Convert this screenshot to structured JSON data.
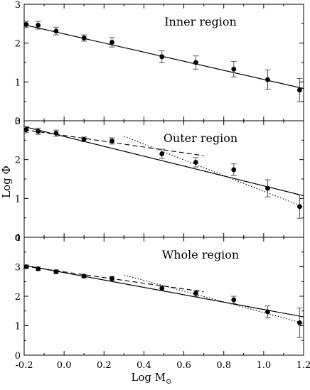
{
  "chart_data": [
    {
      "type": "scatter",
      "title": "Inner region",
      "xlim": [
        -0.2,
        1.2
      ],
      "ylim": [
        0,
        3
      ],
      "x": [
        -0.19,
        -0.13,
        -0.04,
        0.1,
        0.24,
        0.49,
        0.66,
        0.85,
        1.02,
        1.18
      ],
      "y": [
        2.48,
        2.46,
        2.31,
        2.13,
        2.02,
        1.65,
        1.5,
        1.33,
        1.06,
        0.79
      ],
      "yerr": [
        0.08,
        0.1,
        0.1,
        0.08,
        0.12,
        0.15,
        0.17,
        0.2,
        0.25,
        0.3
      ],
      "fits": [
        {
          "style": "solid",
          "x": [
            -0.2,
            1.2
          ],
          "y": [
            2.47,
            0.83
          ]
        }
      ]
    },
    {
      "type": "scatter",
      "title": "Outer region",
      "xlim": [
        -0.2,
        1.2
      ],
      "ylim": [
        0,
        3
      ],
      "x": [
        -0.19,
        -0.13,
        -0.04,
        0.1,
        0.24,
        0.49,
        0.66,
        0.85,
        1.02,
        1.18
      ],
      "y": [
        2.77,
        2.73,
        2.68,
        2.52,
        2.48,
        2.15,
        1.93,
        1.74,
        1.26,
        0.79
      ],
      "yerr": [
        0.08,
        0.08,
        0.08,
        0.06,
        0.08,
        0.12,
        0.12,
        0.15,
        0.22,
        0.3
      ],
      "fits": [
        {
          "style": "solid",
          "x": [
            -0.2,
            1.2
          ],
          "y": [
            2.85,
            1.07
          ]
        },
        {
          "style": "dashed",
          "x": [
            -0.2,
            0.7
          ],
          "y": [
            2.77,
            2.1
          ]
        },
        {
          "style": "dotted",
          "x": [
            0.3,
            1.2
          ],
          "y": [
            2.6,
            0.78
          ]
        }
      ]
    },
    {
      "type": "scatter",
      "title": "Whole region",
      "xlim": [
        -0.2,
        1.2
      ],
      "ylim": [
        0,
        4
      ],
      "x": [
        -0.19,
        -0.13,
        -0.04,
        0.1,
        0.24,
        0.49,
        0.66,
        0.85,
        1.02,
        1.18
      ],
      "y": [
        3.0,
        2.93,
        2.83,
        2.68,
        2.6,
        2.27,
        2.1,
        1.88,
        1.47,
        1.1
      ],
      "yerr": [
        0.06,
        0.06,
        0.06,
        0.05,
        0.07,
        0.08,
        0.1,
        0.12,
        0.2,
        0.5
      ],
      "fits": [
        {
          "style": "solid",
          "x": [
            -0.2,
            1.2
          ],
          "y": [
            3.05,
            1.3
          ]
        },
        {
          "style": "dashed",
          "x": [
            -0.2,
            0.7
          ],
          "y": [
            3.02,
            2.15
          ]
        },
        {
          "style": "dotted",
          "x": [
            0.3,
            1.2
          ],
          "y": [
            2.72,
            1.08
          ]
        }
      ]
    }
  ],
  "axes": {
    "ylabel": "Log Φ",
    "xlabel": "Log M",
    "xlabel_sub": "⊙",
    "xticks": [
      "-0.2",
      "0.0",
      "0.2",
      "0.4",
      "0.6",
      "0.8",
      "1.0",
      "1.2"
    ],
    "panel_yticks": [
      [
        "0",
        "1",
        "2",
        "3"
      ],
      [
        "0",
        "1",
        "2",
        "3"
      ],
      [
        "0",
        "1",
        "2",
        "3",
        "4"
      ]
    ]
  }
}
